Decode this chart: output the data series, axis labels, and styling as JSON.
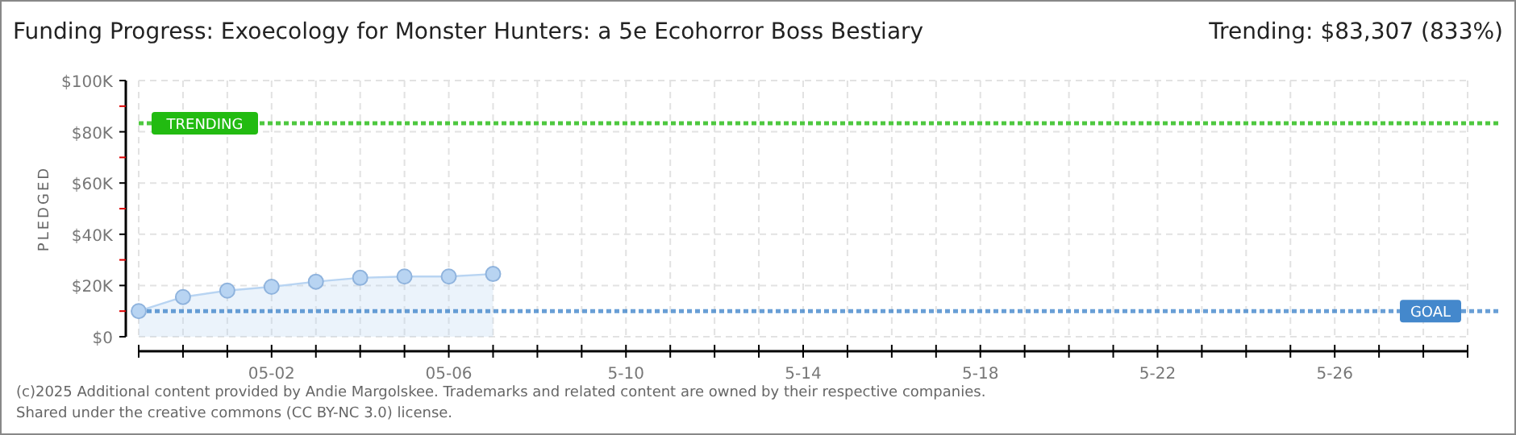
{
  "chart_data": {
    "type": "area",
    "title": "Funding Progress: Exoecology for Monster Hunters: a 5e Ecohorror Boss Bestiary",
    "subtitle": "Trending: $83,307 (833%)",
    "ylabel": "PLEDGED",
    "x": [
      "--04-29",
      "--04-30",
      "--05-01",
      "--05-02",
      "--05-03",
      "--05-04",
      "--05-05",
      "--05-06",
      "--05-07"
    ],
    "series": [
      {
        "color": "#b8d4f2",
        "values": [
          10000,
          15500,
          18000,
          19500,
          21500,
          23000,
          23500,
          23500,
          24500
        ]
      }
    ],
    "xlim": [
      "--04-29",
      "--05-29"
    ],
    "xticks": [
      {
        "value": "--04-29",
        "label": null
      },
      {
        "value": "--04-30",
        "label": null
      },
      {
        "value": "--05-01",
        "label": null
      },
      {
        "value": "--05-02",
        "label": "05-02"
      },
      {
        "value": "--05-03",
        "label": null
      },
      {
        "value": "--05-04",
        "label": null
      },
      {
        "value": "--05-05",
        "label": null
      },
      {
        "value": "--05-06",
        "label": "05-06"
      },
      {
        "value": "--05-07",
        "label": null
      },
      {
        "value": "--05-08",
        "label": null
      },
      {
        "value": "--05-09",
        "label": null
      },
      {
        "value": "--05-10",
        "label": "5-10"
      },
      {
        "value": "--05-11",
        "label": null
      },
      {
        "value": "--05-12",
        "label": null
      },
      {
        "value": "--05-13",
        "label": null
      },
      {
        "value": "--05-14",
        "label": "5-14"
      },
      {
        "value": "--05-15",
        "label": null
      },
      {
        "value": "--05-16",
        "label": null
      },
      {
        "value": "--05-17",
        "label": null
      },
      {
        "value": "--05-18",
        "label": "5-18"
      },
      {
        "value": "--05-19",
        "label": null
      },
      {
        "value": "--05-20",
        "label": null
      },
      {
        "value": "--05-21",
        "label": null
      },
      {
        "value": "--05-22",
        "label": "5-22"
      },
      {
        "value": "--05-23",
        "label": null
      },
      {
        "value": "--05-24",
        "label": null
      },
      {
        "value": "--05-25",
        "label": null
      },
      {
        "value": "--05-26",
        "label": "5-26"
      },
      {
        "value": "--05-27",
        "label": null
      },
      {
        "value": "--05-28",
        "label": null
      },
      {
        "value": "--05-29",
        "label": null
      }
    ],
    "ylim": [
      0,
      100000
    ],
    "yticks": [
      {
        "value": 0,
        "label": "$0"
      },
      {
        "value": 10000,
        "label": null
      },
      {
        "value": 20000,
        "label": "$20K"
      },
      {
        "value": 30000,
        "label": null
      },
      {
        "value": 40000,
        "label": "$40K"
      },
      {
        "value": 50000,
        "label": null
      },
      {
        "value": 60000,
        "label": "$60K"
      },
      {
        "value": 70000,
        "label": null
      },
      {
        "value": 80000,
        "label": "$80K"
      },
      {
        "value": 90000,
        "label": null
      },
      {
        "value": 100000,
        "label": "$100K"
      }
    ],
    "ref_lines": [
      {
        "axis": "y",
        "value": 83307,
        "label": "TRENDING",
        "color": "#22bb11",
        "line_style": "dotted"
      },
      {
        "axis": "y",
        "value": 10000,
        "label": "GOAL",
        "color": "#4488cc",
        "line_style": "dotted"
      }
    ],
    "grid": true,
    "marker": "circle",
    "annotations": [
      "(c)2025 Additional content provided by Andie Margolskee. Trademarks and related content are owned by their respective companies.",
      "Shared under the creative commons (CC BY-NC 3.0) license."
    ]
  }
}
